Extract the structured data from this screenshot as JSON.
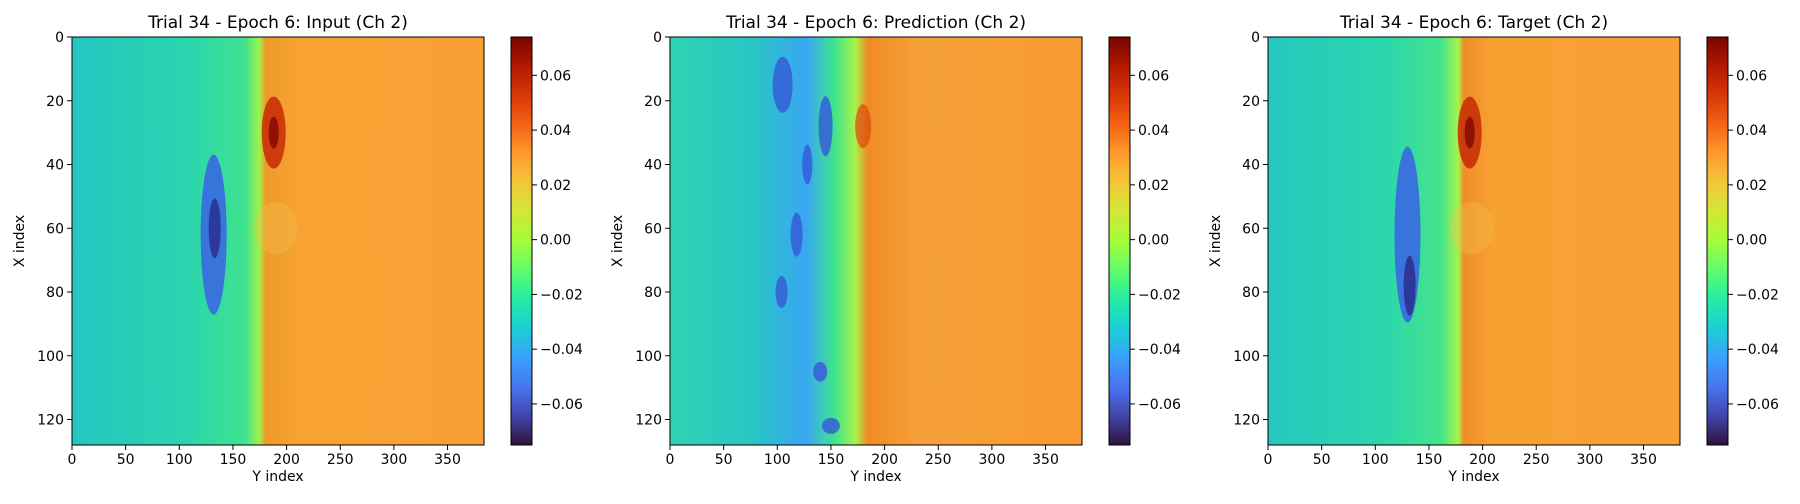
{
  "chart_data": [
    {
      "type": "heatmap",
      "title": "Trial 34 - Epoch 6: Input (Ch 2)",
      "xlabel": "Y index",
      "ylabel": "X index",
      "xlim": [
        0,
        384
      ],
      "ylim": [
        128,
        0
      ],
      "x_ticks": [
        0,
        50,
        100,
        150,
        200,
        250,
        300,
        350
      ],
      "y_ticks": [
        0,
        20,
        40,
        60,
        80,
        100,
        120
      ],
      "colorbar": {
        "colormap": "turbo",
        "vmin": -0.075,
        "vmax": 0.074,
        "ticks": [
          "0.06",
          "0.04",
          "0.02",
          "0.00",
          "−0.02",
          "−0.04",
          "−0.06"
        ],
        "tick_values": [
          0.06,
          0.04,
          0.02,
          0.0,
          -0.02,
          -0.04,
          -0.06
        ]
      }
    },
    {
      "type": "heatmap",
      "title": "Trial 34 - Epoch 6: Prediction (Ch 2)",
      "xlabel": "Y index",
      "ylabel": "X index",
      "xlim": [
        0,
        384
      ],
      "ylim": [
        128,
        0
      ],
      "x_ticks": [
        0,
        50,
        100,
        150,
        200,
        250,
        300,
        350
      ],
      "y_ticks": [
        0,
        20,
        40,
        60,
        80,
        100,
        120
      ],
      "colorbar": {
        "colormap": "turbo",
        "vmin": -0.075,
        "vmax": 0.074,
        "ticks": [
          "0.06",
          "0.04",
          "0.02",
          "0.00",
          "−0.02",
          "−0.04",
          "−0.06"
        ],
        "tick_values": [
          0.06,
          0.04,
          0.02,
          0.0,
          -0.02,
          -0.04,
          -0.06
        ]
      }
    },
    {
      "type": "heatmap",
      "title": "Trial 34 - Epoch 6: Target (Ch 2)",
      "xlabel": "Y index",
      "ylabel": "X index",
      "xlim": [
        0,
        384
      ],
      "ylim": [
        128,
        0
      ],
      "x_ticks": [
        0,
        50,
        100,
        150,
        200,
        250,
        300,
        350
      ],
      "y_ticks": [
        0,
        20,
        40,
        60,
        80,
        100,
        120
      ],
      "colorbar": {
        "colormap": "turbo",
        "vmin": -0.075,
        "vmax": 0.074,
        "ticks": [
          "0.06",
          "0.04",
          "0.02",
          "0.00",
          "−0.02",
          "−0.04",
          "−0.06"
        ],
        "tick_values": [
          0.06,
          0.04,
          0.02,
          0.0,
          -0.02,
          -0.04,
          -0.06
        ]
      }
    }
  ]
}
